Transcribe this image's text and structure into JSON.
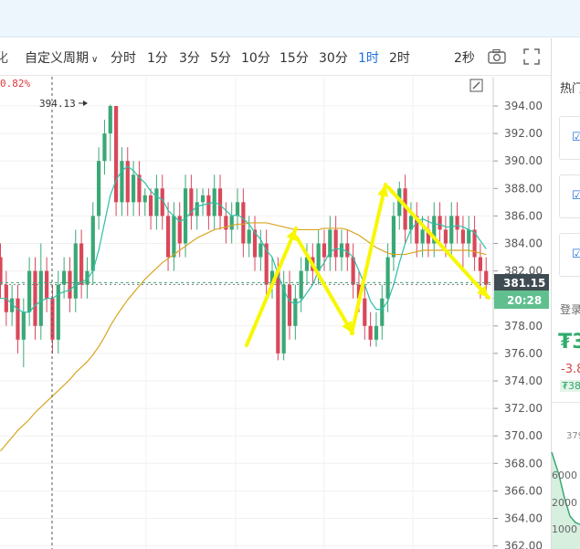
{
  "toolbar": {
    "partial_left": "化",
    "custom_period": "自定义周期",
    "periods": [
      {
        "label": "分时"
      },
      {
        "label": "1分"
      },
      {
        "label": "3分"
      },
      {
        "label": "5分"
      },
      {
        "label": "10分"
      },
      {
        "label": "15分"
      },
      {
        "label": "30分"
      },
      {
        "label": "1时",
        "active": true
      },
      {
        "label": "2时"
      }
    ],
    "refresh": "2秒"
  },
  "colors": {
    "up": "#f5c0c0",
    "down": "#3aa876",
    "accent": "#1f6fe0",
    "arrow": "#f7f700",
    "ma_fast": "#2dbfa6",
    "ma_slow": "#d9a520"
  },
  "chart_data": {
    "type": "candlestick",
    "change_pct": "0.82%",
    "high_marker": "394.13",
    "current_price": "381.15",
    "countdown": "20:28",
    "y_ticks": [
      "394.00",
      "392.00",
      "390.00",
      "388.00",
      "386.00",
      "384.00",
      "382.00",
      "380.00",
      "378.00",
      "376.00",
      "374.00",
      "372.00",
      "370.00",
      "368.00",
      "366.00",
      "364.00",
      "362.00"
    ],
    "ylim": [
      362,
      395
    ],
    "candles": [
      [
        383,
        381,
        384,
        380
      ],
      [
        381,
        379,
        382,
        378
      ],
      [
        379,
        380,
        381,
        378
      ],
      [
        380,
        377,
        381,
        376
      ],
      [
        377,
        379,
        380,
        375
      ],
      [
        379,
        382,
        383,
        378
      ],
      [
        382,
        378,
        383,
        377
      ],
      [
        378,
        382,
        384,
        377
      ],
      [
        382,
        380,
        383,
        379
      ],
      [
        380,
        377,
        381,
        376
      ],
      [
        377,
        381,
        382,
        376
      ],
      [
        381,
        382,
        383,
        380
      ],
      [
        382,
        380,
        383,
        379
      ],
      [
        380,
        384,
        385,
        379
      ],
      [
        384,
        381,
        385,
        380
      ],
      [
        381,
        382,
        383,
        380
      ],
      [
        382,
        386,
        387,
        381
      ],
      [
        386,
        390,
        391,
        385
      ],
      [
        390,
        392,
        393,
        389
      ],
      [
        392,
        394,
        394.1,
        390
      ],
      [
        394,
        387,
        394,
        386
      ],
      [
        387,
        390,
        391,
        386
      ],
      [
        390,
        387,
        391,
        386
      ],
      [
        387,
        389,
        390,
        386
      ],
      [
        389,
        387,
        390,
        386
      ],
      [
        387,
        387.5,
        388,
        386
      ],
      [
        387.5,
        386,
        388,
        385
      ],
      [
        386,
        388,
        389,
        385
      ],
      [
        388,
        386,
        389,
        385
      ],
      [
        386,
        383,
        387,
        382
      ],
      [
        383,
        386,
        387,
        382
      ],
      [
        386,
        384,
        387,
        383
      ],
      [
        384,
        388,
        389,
        383
      ],
      [
        388,
        386,
        389,
        385
      ],
      [
        386,
        387,
        388,
        385
      ],
      [
        387,
        387.5,
        388,
        386
      ],
      [
        387.5,
        386,
        388,
        385
      ],
      [
        386,
        388,
        389,
        385
      ],
      [
        388,
        386,
        389,
        385
      ],
      [
        386,
        385,
        387,
        384
      ],
      [
        385,
        386,
        387,
        384
      ],
      [
        386,
        387,
        388,
        385
      ],
      [
        387,
        384,
        388,
        383
      ],
      [
        384,
        385,
        386,
        383
      ],
      [
        385,
        383,
        386,
        382
      ],
      [
        383,
        384,
        385,
        382
      ],
      [
        384,
        381,
        385,
        380
      ],
      [
        381,
        382,
        383,
        380
      ],
      [
        382,
        376,
        383,
        375.5
      ],
      [
        376,
        381,
        382,
        375.5
      ],
      [
        381,
        378,
        382,
        377
      ],
      [
        378,
        380,
        381,
        377
      ],
      [
        380,
        382,
        383,
        379
      ],
      [
        382,
        383,
        384,
        381
      ],
      [
        383,
        382,
        384,
        381
      ],
      [
        382,
        384,
        385,
        381
      ],
      [
        384,
        383,
        385,
        382
      ],
      [
        383,
        385,
        386,
        382
      ],
      [
        385,
        383,
        386,
        382
      ],
      [
        383,
        384,
        385,
        382
      ],
      [
        384,
        383,
        385,
        382
      ],
      [
        383,
        381,
        384,
        380
      ],
      [
        381,
        380,
        382,
        379
      ],
      [
        380,
        378,
        381,
        377
      ],
      [
        378,
        377,
        379,
        376.5
      ],
      [
        377,
        378,
        379,
        376.5
      ],
      [
        378,
        380,
        381,
        377
      ],
      [
        380,
        383,
        384,
        379
      ],
      [
        383,
        386,
        387,
        382
      ],
      [
        386,
        388,
        388.5,
        385
      ],
      [
        388,
        385,
        389,
        384
      ],
      [
        385,
        386,
        387,
        384
      ],
      [
        386,
        384,
        387,
        383
      ],
      [
        384,
        385,
        386,
        383
      ],
      [
        385,
        384,
        386,
        383
      ],
      [
        384,
        386,
        387,
        383
      ],
      [
        386,
        385,
        387,
        384
      ],
      [
        385,
        384,
        386,
        383
      ],
      [
        384,
        386,
        387,
        383
      ],
      [
        386,
        385,
        387,
        384
      ],
      [
        385,
        384,
        386,
        382
      ],
      [
        384,
        385,
        386,
        383
      ],
      [
        385,
        383,
        386,
        382
      ],
      [
        383,
        382,
        384,
        380
      ],
      [
        382,
        381,
        383,
        380
      ]
    ],
    "ma_fast": [
      380,
      380,
      379.6,
      379.2,
      379,
      379,
      379.5,
      379.8,
      380,
      380,
      380.3,
      380.5,
      380.6,
      381,
      381.2,
      381.4,
      382,
      383.5,
      385.5,
      387.5,
      388.6,
      389.3,
      389.6,
      389.3,
      388.8,
      388.4,
      387.8,
      387.4,
      387.2,
      386.4,
      386,
      385.6,
      385.8,
      386.3,
      386.7,
      386.8,
      386.9,
      387,
      386.8,
      386.4,
      386,
      386.1,
      385.8,
      385.4,
      384.8,
      384.3,
      383.5,
      383,
      381.8,
      380.6,
      379.8,
      379.6,
      379.8,
      380.4,
      381,
      382,
      382.6,
      383.4,
      383.6,
      383.6,
      383.4,
      383,
      382,
      381,
      379.8,
      379.2,
      379.2,
      379.8,
      381,
      382.6,
      384,
      385,
      385.5,
      385.8,
      385.6,
      385.4,
      385.4,
      385.2,
      385.2,
      385.3,
      385.2,
      385,
      384.8,
      384.2,
      383.6
    ],
    "ma_slow": [
      368.9,
      369.4,
      369.9,
      370.4,
      370.8,
      371.2,
      371.7,
      372.1,
      372.5,
      372.9,
      373.3,
      373.7,
      374.1,
      374.6,
      375,
      375.4,
      375.9,
      376.5,
      377.2,
      378,
      378.7,
      379.3,
      379.9,
      380.4,
      380.9,
      381.4,
      381.8,
      382.2,
      382.6,
      382.9,
      383.2,
      383.5,
      383.8,
      384.1,
      384.4,
      384.6,
      384.8,
      385,
      385.1,
      385.2,
      385.3,
      385.4,
      385.4,
      385.5,
      385.5,
      385.5,
      385.5,
      385.4,
      385.3,
      385.2,
      385.1,
      385,
      385,
      385,
      385,
      385,
      385.1,
      385.1,
      385.1,
      385.1,
      385,
      384.8,
      384.6,
      384.3,
      384,
      383.7,
      383.5,
      383.3,
      383.2,
      383.2,
      383.2,
      383.3,
      383.4,
      383.5,
      383.5,
      383.5,
      383.5,
      383.5,
      383.5,
      383.5,
      383.5,
      383.5,
      383.4,
      383.3,
      383.2
    ]
  },
  "right_panel": {
    "hot_partial": "热门",
    "login_partial": "登录",
    "price_partial": "₮3",
    "change_partial": "-3.8",
    "tag_partial": "₮38",
    "depth_top": "379",
    "depth_mid": "2000",
    "depth_low": "1000"
  }
}
